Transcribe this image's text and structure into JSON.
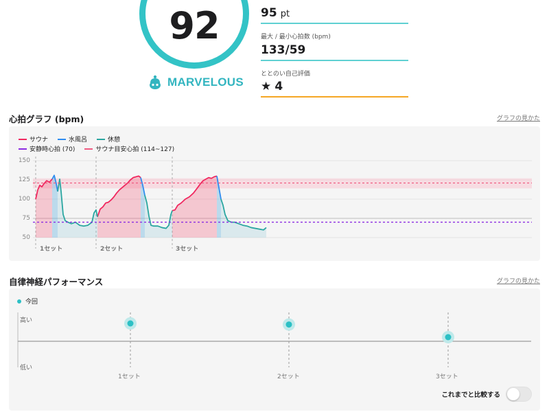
{
  "score": {
    "value": "92",
    "rating": "MARVELOUS"
  },
  "stats": [
    {
      "label": "",
      "value": "95",
      "unit": "pt"
    },
    {
      "label": "最大 / 最小心拍数 (bpm)",
      "value": "133/59",
      "unit": ""
    },
    {
      "label": "ととのい自己評価",
      "value": "4",
      "unit": ""
    }
  ],
  "heart_section": {
    "title": "心拍グラフ (bpm)",
    "help_link": "グラフの見かた",
    "legend": [
      {
        "label": "サウナ",
        "color": "#f0285f",
        "style": "solid"
      },
      {
        "label": "水風呂",
        "color": "#2f8cf0",
        "style": "solid"
      },
      {
        "label": "休憩",
        "color": "#2aa6a0",
        "style": "solid"
      },
      {
        "label": "安静時心拍 (70)",
        "color": "#8a2be2",
        "style": "dashed"
      },
      {
        "label": "サウナ目安心拍 (114~127)",
        "color": "#f05a80",
        "style": "dashed"
      }
    ],
    "y_ticks": [
      "150",
      "125",
      "100",
      "75",
      "50"
    ],
    "set_labels": [
      "1セット",
      "2セット",
      "3セット"
    ]
  },
  "chart_data": {
    "type": "line",
    "ylim": [
      50,
      150
    ],
    "reference_lines": [
      {
        "name": "安静時心拍",
        "value": 70
      },
      {
        "name": "サウナ目安心拍",
        "band": [
          114,
          127
        ],
        "line": 121
      }
    ],
    "series": [
      {
        "name": "サウナ",
        "color": "#f0285f",
        "segments": [
          [
            [
              0,
              100
            ],
            [
              3,
              112
            ],
            [
              6,
              118
            ],
            [
              9,
              116
            ],
            [
              12,
              120
            ],
            [
              16,
              124
            ],
            [
              20,
              122
            ],
            [
              24,
              126
            ]
          ],
          [
            [
              90,
              77
            ],
            [
              94,
              87
            ],
            [
              98,
              90
            ],
            [
              102,
              95
            ],
            [
              106,
              96
            ],
            [
              110,
              99
            ],
            [
              114,
              103
            ],
            [
              118,
              108
            ],
            [
              122,
              112
            ],
            [
              126,
              115
            ],
            [
              130,
              118
            ],
            [
              134,
              121
            ],
            [
              138,
              125
            ],
            [
              142,
              128
            ],
            [
              146,
              129
            ],
            [
              150,
              130
            ],
            [
              153,
              128
            ]
          ],
          [
            [
              199,
              85
            ],
            [
              203,
              86
            ],
            [
              207,
              92
            ],
            [
              212,
              95
            ],
            [
              218,
              100
            ],
            [
              224,
              103
            ],
            [
              230,
              108
            ],
            [
              236,
              115
            ],
            [
              240,
              120
            ],
            [
              244,
              124
            ],
            [
              248,
              126
            ],
            [
              252,
              128
            ],
            [
              256,
              127
            ],
            [
              260,
              129
            ],
            [
              264,
              130
            ]
          ]
        ]
      },
      {
        "name": "水風呂",
        "color": "#2f8cf0",
        "segments": [
          [
            [
              24,
              126
            ],
            [
              27,
              131
            ],
            [
              30,
              120
            ],
            [
              32,
              110
            ]
          ],
          [
            [
              153,
              128
            ],
            [
              156,
              118
            ],
            [
              159,
              105
            ]
          ],
          [
            [
              264,
              130
            ],
            [
              267,
              115
            ],
            [
              270,
              100
            ]
          ]
        ]
      },
      {
        "name": "休憩",
        "color": "#2aa6a0",
        "segments": [
          [
            [
              32,
              110
            ],
            [
              35,
              126
            ],
            [
              37,
              110
            ],
            [
              40,
              80
            ],
            [
              43,
              72
            ],
            [
              47,
              70
            ],
            [
              52,
              68
            ],
            [
              58,
              70
            ],
            [
              64,
              66
            ],
            [
              70,
              65
            ],
            [
              76,
              66
            ],
            [
              82,
              70
            ],
            [
              85,
              82
            ],
            [
              88,
              86
            ],
            [
              90,
              77
            ]
          ],
          [
            [
              159,
              105
            ],
            [
              162,
              95
            ],
            [
              165,
              78
            ],
            [
              168,
              66
            ],
            [
              172,
              65
            ],
            [
              178,
              65
            ],
            [
              184,
              63
            ],
            [
              190,
              62
            ],
            [
              194,
              66
            ],
            [
              197,
              80
            ],
            [
              199,
              85
            ]
          ],
          [
            [
              270,
              100
            ],
            [
              273,
              92
            ],
            [
              276,
              80
            ],
            [
              280,
              72
            ],
            [
              285,
              70
            ],
            [
              290,
              70
            ],
            [
              296,
              68
            ],
            [
              302,
              66
            ],
            [
              308,
              65
            ],
            [
              314,
              63
            ],
            [
              320,
              62
            ],
            [
              326,
              61
            ],
            [
              332,
              60
            ],
            [
              336,
              63
            ]
          ]
        ]
      }
    ]
  },
  "ans_section": {
    "title": "自律神経パフォーマンス",
    "help_link": "グラフの見かた",
    "legend": "今回",
    "high_label": "高い",
    "low_label": "低い",
    "set_labels": [
      "1セット",
      "2セット",
      "3セット"
    ],
    "compare_label": "これまでと比較する",
    "compare_on": false
  },
  "ans_chart_data": {
    "type": "scatter",
    "categories": [
      "1セット",
      "2セット",
      "3セット"
    ],
    "values": [
      0.8,
      0.78,
      0.55
    ],
    "ylim": [
      0,
      1
    ]
  }
}
